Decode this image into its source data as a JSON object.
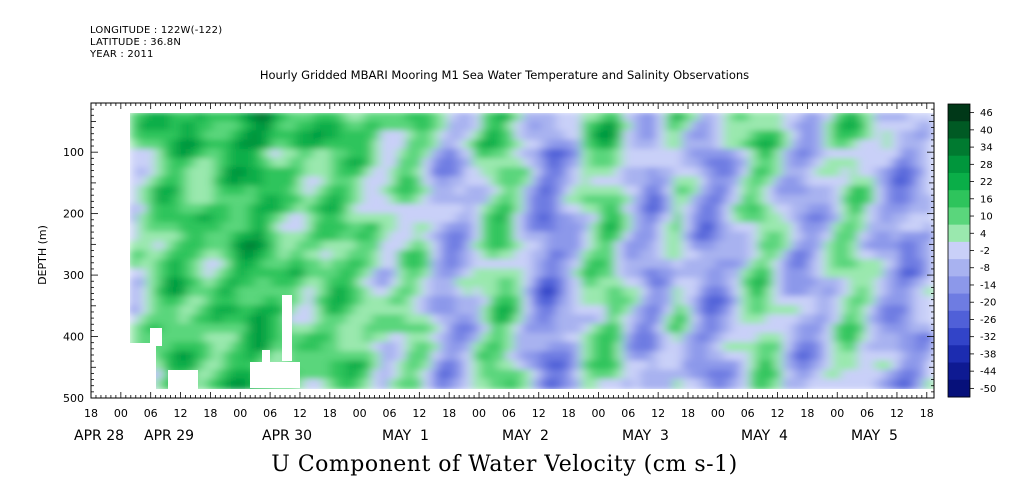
{
  "header": {
    "longitude": "LONGITUDE : 122W(-122)",
    "latitude": "LATITUDE : 36.8N",
    "year": "YEAR : 2011"
  },
  "chart_data": {
    "type": "heatmap",
    "title": "Hourly Gridded MBARI Mooring M1 Sea Water Temperature and Salinity Observations",
    "xlabel": "U Component of Water Velocity (cm s-1)",
    "ylabel": "DEPTH (m)",
    "ylim": [
      500,
      20
    ],
    "y_ticks": [
      100,
      200,
      300,
      400,
      500
    ],
    "y_tick_labels": [
      "100",
      "200",
      "300",
      "400",
      "500"
    ],
    "x_hour_labels": [
      "18",
      "00",
      "06",
      "12",
      "18",
      "00",
      "06",
      "12",
      "18",
      "00",
      "06",
      "12",
      "18",
      "00",
      "06",
      "12",
      "18",
      "00",
      "06",
      "12",
      "18",
      "00",
      "06",
      "12",
      "18",
      "00",
      "06",
      "12",
      "18"
    ],
    "x_day_labels": [
      "APR 28",
      "APR 29",
      "APR 30",
      "MAY  1",
      "MAY  2",
      "MAY  3",
      "MAY  4",
      "MAY  5"
    ],
    "colorbar": {
      "labels": [
        "46",
        "40",
        "34",
        "28",
        "22",
        "16",
        "10",
        "4",
        "-2",
        "-8",
        "-14",
        "-20",
        "-26",
        "-32",
        "-38",
        "-44",
        "-50"
      ],
      "colors": [
        "#003818",
        "#005a24",
        "#007a30",
        "#00963c",
        "#0aae48",
        "#2ec45c",
        "#5ad67c",
        "#9ae8ae",
        "#c9d0f8",
        "#a8b2f0",
        "#8c98ea",
        "#6e7ce2",
        "#5060d8",
        "#3244c8",
        "#1c2cb0",
        "#0e1a92",
        "#06107a"
      ]
    },
    "velocity_patterns": {
      "columns": [
        -2,
        4,
        10,
        16,
        14,
        10,
        8,
        12,
        16,
        18,
        20,
        14,
        10,
        8,
        6,
        10,
        14,
        12,
        8,
        4,
        -2,
        4,
        8,
        4,
        -8,
        -14,
        -10,
        -4,
        6,
        12,
        8,
        -4,
        -14,
        -20,
        -14,
        -6,
        4,
        8,
        12,
        -2,
        -10,
        -16,
        -8,
        4,
        -4,
        -14,
        -18,
        -10,
        -2,
        6,
        10,
        2,
        -8,
        -14,
        -10,
        -4,
        4,
        8,
        2,
        -6,
        -12,
        -16,
        -12,
        -6
      ],
      "note": ""
    }
  }
}
